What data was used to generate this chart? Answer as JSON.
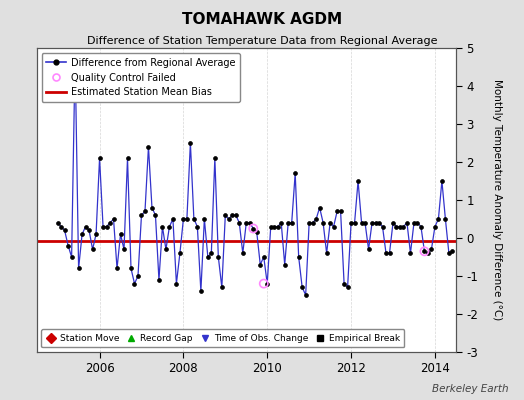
{
  "title": "TOMAHAWK AGDM",
  "subtitle": "Difference of Station Temperature Data from Regional Average",
  "ylabel_right": "Monthly Temperature Anomaly Difference (°C)",
  "watermark": "Berkeley Earth",
  "ylim": [
    -3,
    5
  ],
  "yticks": [
    -3,
    -2,
    -1,
    0,
    1,
    2,
    3,
    4,
    5
  ],
  "xlim_start": 2004.5,
  "xlim_end": 2014.5,
  "xtick_years": [
    2006,
    2008,
    2010,
    2012,
    2014
  ],
  "bias_value": -0.07,
  "background_color": "#e0e0e0",
  "plot_bg_color": "#ffffff",
  "line_color": "#3333cc",
  "bias_color": "#cc0000",
  "dot_color": "#000000",
  "qc_fail_color": "#ff88ff",
  "ts_values": [
    0.4,
    0.3,
    0.2,
    -0.2,
    -0.5,
    4.8,
    -0.8,
    0.1,
    0.3,
    0.2,
    -0.3,
    0.1,
    2.1,
    0.3,
    0.3,
    0.4,
    0.5,
    -0.8,
    0.1,
    -0.3,
    2.1,
    -0.8,
    -1.2,
    -1.0,
    0.6,
    0.7,
    2.4,
    0.8,
    0.6,
    -1.1,
    0.3,
    -0.3,
    0.3,
    0.5,
    -1.2,
    -0.4,
    0.5,
    0.5,
    2.5,
    0.5,
    0.3,
    -1.4,
    0.5,
    -0.5,
    -0.4,
    2.1,
    -0.5,
    -1.3,
    0.6,
    0.5,
    0.6,
    0.6,
    0.4,
    -0.4,
    0.4,
    0.4,
    0.25,
    0.15,
    -0.7,
    -0.5,
    -1.2,
    0.3,
    0.3,
    0.3,
    0.4,
    -0.7,
    0.4,
    0.4,
    1.7,
    -0.5,
    -1.3,
    -1.5,
    0.4,
    0.4,
    0.5,
    0.8,
    0.4,
    -0.4,
    0.4,
    0.3,
    0.7,
    0.7,
    -1.2,
    -1.3,
    0.4,
    0.4,
    1.5,
    0.4,
    0.4,
    -0.3,
    0.4,
    0.4,
    0.4,
    0.3,
    -0.4,
    -0.4,
    0.4,
    0.3,
    0.3,
    0.3,
    0.4,
    -0.4,
    0.4,
    0.4,
    0.3,
    -0.35,
    -0.4,
    -0.3,
    0.3,
    0.5,
    1.5,
    0.5,
    -0.4,
    -0.35
  ],
  "qc_fail_times": [
    2009.667,
    2009.917,
    2013.75
  ],
  "qc_fail_vals": [
    0.25,
    -1.2,
    -0.35
  ],
  "start_year": 2005,
  "start_month": 1
}
